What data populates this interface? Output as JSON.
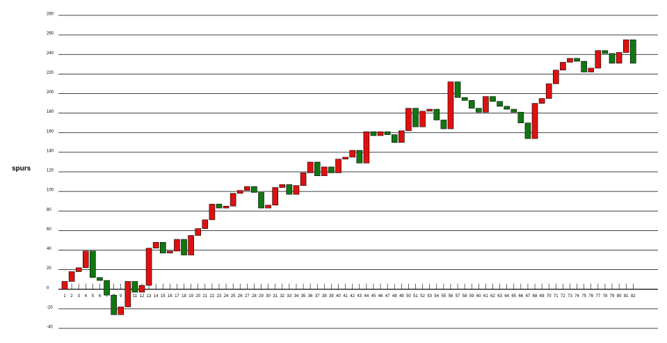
{
  "chart_data": {
    "type": "waterfall",
    "title": "",
    "xlabel": "",
    "ylabel": "spurs",
    "ylim": [
      -40,
      280
    ],
    "y_ticks": [
      -40,
      -20,
      0,
      20,
      40,
      60,
      80,
      100,
      120,
      140,
      160,
      180,
      200,
      220,
      240,
      260,
      280
    ],
    "grid": true,
    "colors": {
      "increase": "#dd1111",
      "decrease": "#117711",
      "edge": "#000000",
      "grid": "#000000"
    },
    "categories": [
      "1",
      "2",
      "3",
      "4",
      "5",
      "6",
      "7",
      "8",
      "9",
      "10",
      "11",
      "12",
      "13",
      "14",
      "15",
      "16",
      "17",
      "18",
      "19",
      "20",
      "21",
      "22",
      "23",
      "24",
      "25",
      "26",
      "27",
      "28",
      "29",
      "30",
      "31",
      "32",
      "33",
      "34",
      "35",
      "36",
      "37",
      "38",
      "39",
      "40",
      "41",
      "42",
      "43",
      "44",
      "45",
      "46",
      "47",
      "48",
      "49",
      "50",
      "51",
      "52",
      "53",
      "54",
      "55",
      "56",
      "57",
      "58",
      "59",
      "60",
      "61",
      "62",
      "63",
      "64",
      "65",
      "66",
      "67",
      "68",
      "69",
      "70",
      "71",
      "72",
      "73",
      "74",
      "75",
      "76",
      "77",
      "78",
      "79",
      "80",
      "81",
      "82"
    ],
    "changes": [
      8,
      10,
      4,
      17,
      -27,
      -3,
      -15,
      -20,
      8,
      26,
      -11,
      7,
      38,
      6,
      -11,
      2,
      12,
      -16,
      20,
      7,
      9,
      16,
      -4,
      2,
      13,
      3,
      4,
      -6,
      -16,
      3,
      18,
      3,
      -10,
      9,
      13,
      11,
      -14,
      9,
      -6,
      14,
      2,
      7,
      -13,
      32,
      -4,
      4,
      -3,
      -8,
      12,
      23,
      -19,
      16,
      2,
      -11,
      -9,
      48,
      -16,
      -3,
      -8,
      -4,
      16,
      -5,
      -5,
      -3,
      -3,
      -11,
      -16,
      36,
      5,
      15,
      14,
      8,
      4,
      -3,
      -11,
      4,
      18,
      -3,
      -10,
      11,
      13,
      -24
    ]
  }
}
